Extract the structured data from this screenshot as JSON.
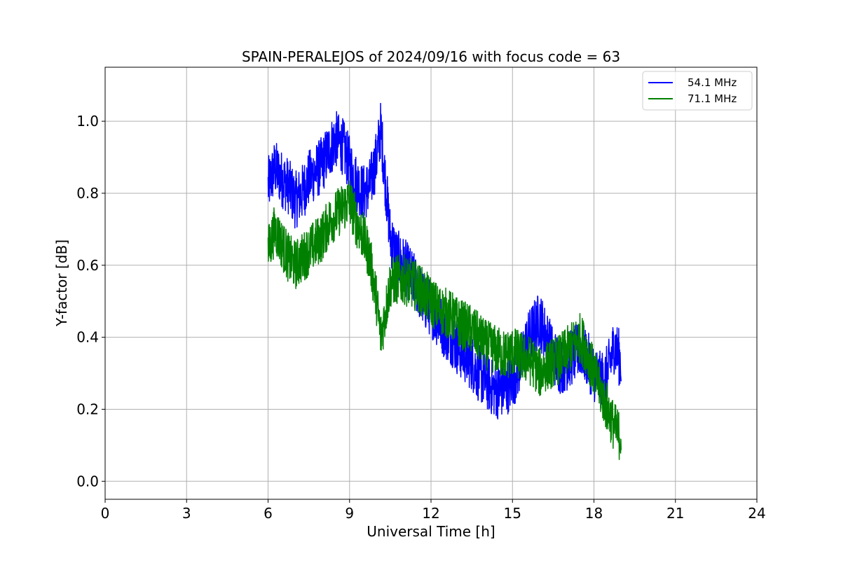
{
  "chart_data": {
    "type": "line",
    "title": "SPAIN-PERALEJOS of 2024/09/16 with focus code = 63",
    "xlabel": "Universal Time [h]",
    "ylabel": "Y-factor [dB]",
    "xlim": [
      0,
      24
    ],
    "ylim": [
      -0.05,
      1.15
    ],
    "xticks": [
      0,
      3,
      6,
      9,
      12,
      15,
      18,
      21,
      24
    ],
    "xtick_labels": [
      "0",
      "3",
      "6",
      "9",
      "12",
      "15",
      "18",
      "21",
      "24"
    ],
    "yticks": [
      0.0,
      0.2,
      0.4,
      0.6,
      0.8,
      1.0
    ],
    "ytick_labels": [
      "0.0",
      "0.2",
      "0.4",
      "0.6",
      "0.8",
      "1.0"
    ],
    "grid": true,
    "legend_position": "top-right",
    "series": [
      {
        "name": "54.1 MHz",
        "color": "#0000ff",
        "x": [
          6.0,
          6.25,
          6.5,
          6.75,
          7.0,
          7.25,
          7.5,
          7.75,
          8.0,
          8.25,
          8.5,
          8.75,
          9.0,
          9.25,
          9.5,
          9.75,
          10.0,
          10.15,
          10.3,
          10.5,
          10.75,
          11.0,
          11.25,
          11.5,
          11.75,
          12.0,
          12.25,
          12.5,
          12.75,
          13.0,
          13.25,
          13.5,
          13.75,
          14.0,
          14.25,
          14.5,
          14.75,
          15.0,
          15.25,
          15.5,
          15.75,
          16.0,
          16.25,
          16.5,
          16.75,
          17.0,
          17.25,
          17.5,
          17.75,
          18.0,
          18.25,
          18.5,
          18.75,
          19.0
        ],
        "values": [
          0.82,
          0.87,
          0.84,
          0.82,
          0.78,
          0.8,
          0.84,
          0.86,
          0.88,
          0.92,
          0.95,
          0.93,
          0.88,
          0.83,
          0.8,
          0.82,
          0.9,
          0.98,
          0.85,
          0.68,
          0.62,
          0.6,
          0.57,
          0.54,
          0.5,
          0.48,
          0.45,
          0.42,
          0.4,
          0.37,
          0.35,
          0.33,
          0.3,
          0.28,
          0.26,
          0.25,
          0.26,
          0.28,
          0.32,
          0.38,
          0.42,
          0.45,
          0.4,
          0.35,
          0.32,
          0.33,
          0.35,
          0.37,
          0.34,
          0.3,
          0.28,
          0.3,
          0.38,
          0.33
        ]
      },
      {
        "name": "71.1 MHz",
        "color": "#008000",
        "x": [
          6.0,
          6.25,
          6.5,
          6.75,
          7.0,
          7.25,
          7.5,
          7.75,
          8.0,
          8.25,
          8.5,
          8.75,
          9.0,
          9.25,
          9.5,
          9.75,
          10.0,
          10.15,
          10.3,
          10.5,
          10.75,
          11.0,
          11.25,
          11.5,
          11.75,
          12.0,
          12.25,
          12.5,
          12.75,
          13.0,
          13.25,
          13.5,
          13.75,
          14.0,
          14.25,
          14.5,
          14.75,
          15.0,
          15.25,
          15.5,
          15.75,
          16.0,
          16.25,
          16.5,
          16.75,
          17.0,
          17.25,
          17.5,
          17.75,
          18.0,
          18.25,
          18.5,
          18.75,
          19.0
        ],
        "values": [
          0.64,
          0.7,
          0.66,
          0.62,
          0.6,
          0.62,
          0.64,
          0.66,
          0.68,
          0.72,
          0.74,
          0.76,
          0.78,
          0.72,
          0.68,
          0.62,
          0.5,
          0.4,
          0.46,
          0.55,
          0.56,
          0.56,
          0.55,
          0.54,
          0.52,
          0.5,
          0.48,
          0.47,
          0.46,
          0.44,
          0.43,
          0.42,
          0.4,
          0.38,
          0.37,
          0.36,
          0.35,
          0.36,
          0.35,
          0.34,
          0.33,
          0.3,
          0.32,
          0.33,
          0.34,
          0.36,
          0.38,
          0.4,
          0.36,
          0.3,
          0.25,
          0.2,
          0.15,
          0.12
        ]
      }
    ]
  }
}
